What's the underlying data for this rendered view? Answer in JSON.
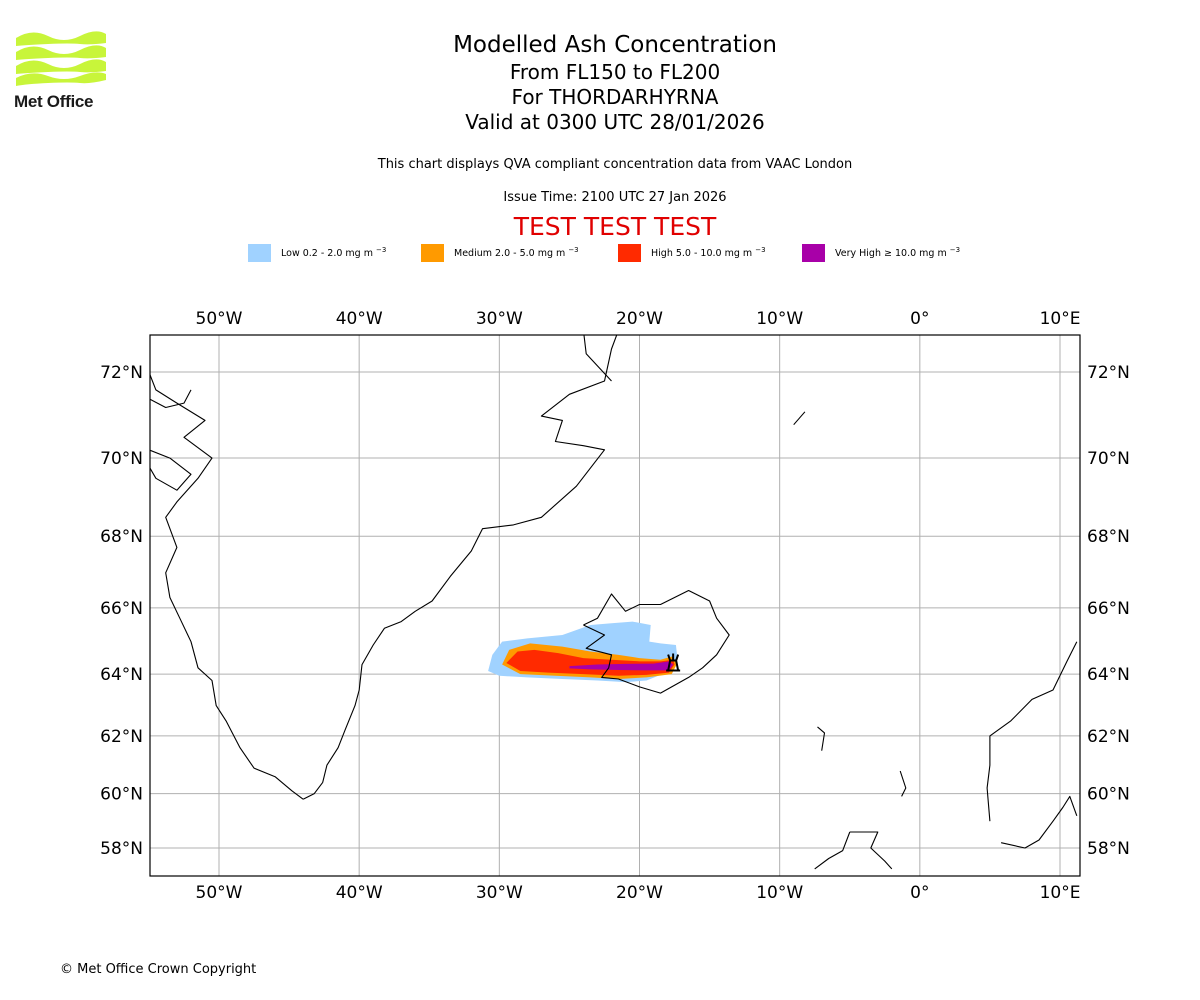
{
  "logo": {
    "name": "Met Office",
    "color": "#c8f53a"
  },
  "header": {
    "title": "Modelled Ash Concentration",
    "levels": "From FL150 to FL200",
    "volcano_line": "For THORDARHYRNA",
    "valid": "Valid at 0300 UTC 28/01/2026",
    "description": "This chart displays QVA compliant concentration data from VAAC London",
    "issue_time": "Issue Time: 2100 UTC 27 Jan 2026",
    "test_banner": "TEST TEST TEST",
    "test_color": "#e00000"
  },
  "legend": [
    {
      "label": "Low 0.2 - 2.0 mg m",
      "exp": "−3",
      "color": "#a0d2ff"
    },
    {
      "label": "Medium 2.0 - 5.0 mg m",
      "exp": "−3",
      "color": "#ff9a00"
    },
    {
      "label": "High 5.0 - 10.0 mg m",
      "exp": "−3",
      "color": "#ff2a00"
    },
    {
      "label": "Very High  ≥  10.0 mg m",
      "exp": "−3",
      "color": "#a800a8"
    }
  ],
  "chart_data": {
    "type": "map",
    "projection": "mercator",
    "extent": {
      "lon": [
        -55,
        11.2
      ],
      "lat": [
        57.2,
        72.8
      ]
    },
    "grid": true,
    "lon_ticks": [
      -50,
      -40,
      -30,
      -20,
      -10,
      0,
      10
    ],
    "lon_tick_labels": [
      "50°W",
      "40°W",
      "30°W",
      "20°W",
      "10°W",
      "0°",
      "10°E"
    ],
    "lat_ticks": [
      72,
      70,
      68,
      66,
      64,
      62,
      60,
      58
    ],
    "lat_tick_labels": [
      "72°N",
      "70°N",
      "68°N",
      "66°N",
      "64°N",
      "62°N",
      "60°N",
      "58°N"
    ],
    "volcano": {
      "name": "THORDARHYRNA",
      "lon": -17.6,
      "lat": 64.3,
      "icon": "volcano-icon"
    },
    "ash_polygons": [
      {
        "level": "low",
        "color": "#a0d2ff",
        "coords": [
          [
            -30.5,
            64.6
          ],
          [
            -29.8,
            65.0
          ],
          [
            -28.0,
            65.1
          ],
          [
            -25.5,
            65.2
          ],
          [
            -23.5,
            65.5
          ],
          [
            -22.0,
            65.55
          ],
          [
            -20.5,
            65.6
          ],
          [
            -19.2,
            65.5
          ],
          [
            -19.3,
            65.0
          ],
          [
            -18.5,
            64.95
          ],
          [
            -17.4,
            64.9
          ],
          [
            -17.3,
            64.5
          ],
          [
            -17.8,
            64.1
          ],
          [
            -19.5,
            63.8
          ],
          [
            -21.0,
            63.75
          ],
          [
            -23.0,
            63.8
          ],
          [
            -25.5,
            63.85
          ],
          [
            -28.0,
            63.9
          ],
          [
            -30.0,
            63.95
          ],
          [
            -30.8,
            64.1
          ]
        ]
      },
      {
        "level": "medium",
        "color": "#ff9a00",
        "coords": [
          [
            -29.8,
            64.3
          ],
          [
            -29.3,
            64.75
          ],
          [
            -27.8,
            64.95
          ],
          [
            -25.5,
            64.85
          ],
          [
            -23.5,
            64.7
          ],
          [
            -21.5,
            64.6
          ],
          [
            -20.0,
            64.5
          ],
          [
            -18.5,
            64.45
          ],
          [
            -17.7,
            64.55
          ],
          [
            -17.3,
            64.35
          ],
          [
            -17.7,
            64.0
          ],
          [
            -19.5,
            63.9
          ],
          [
            -21.5,
            63.85
          ],
          [
            -23.5,
            63.9
          ],
          [
            -26.0,
            63.95
          ],
          [
            -28.5,
            64.0
          ]
        ]
      },
      {
        "level": "high",
        "color": "#ff2a00",
        "coords": [
          [
            -29.5,
            64.35
          ],
          [
            -28.7,
            64.7
          ],
          [
            -27.5,
            64.75
          ],
          [
            -25.8,
            64.65
          ],
          [
            -24.0,
            64.5
          ],
          [
            -22.0,
            64.45
          ],
          [
            -20.0,
            64.4
          ],
          [
            -18.5,
            64.4
          ],
          [
            -17.6,
            64.45
          ],
          [
            -17.5,
            64.3
          ],
          [
            -17.9,
            64.05
          ],
          [
            -19.5,
            63.98
          ],
          [
            -21.5,
            63.95
          ],
          [
            -24.0,
            64.0
          ],
          [
            -26.5,
            64.05
          ],
          [
            -28.5,
            64.1
          ]
        ]
      },
      {
        "level": "very_high",
        "color": "#a800a8",
        "coords": [
          [
            -25.0,
            64.25
          ],
          [
            -23.0,
            64.3
          ],
          [
            -21.0,
            64.32
          ],
          [
            -19.0,
            64.33
          ],
          [
            -17.9,
            64.4
          ],
          [
            -17.6,
            64.3
          ],
          [
            -17.9,
            64.12
          ],
          [
            -19.5,
            64.12
          ],
          [
            -21.5,
            64.13
          ],
          [
            -23.5,
            64.15
          ],
          [
            -25.0,
            64.18
          ]
        ]
      }
    ]
  },
  "footer": {
    "copyright": "© Met Office Crown Copyright"
  }
}
